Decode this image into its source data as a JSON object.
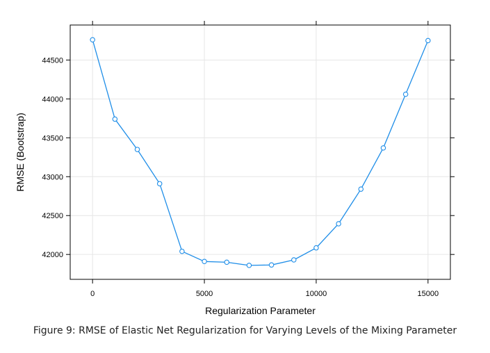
{
  "caption": "Figure 9: RMSE of Elastic Net Regularization for Varying Levels of the Mixing Parameter",
  "chart_data": {
    "type": "line",
    "title": "",
    "xlabel": "Regularization Parameter",
    "ylabel": "RMSE (Bootstrap)",
    "xlim": [
      -1000,
      16000
    ],
    "ylim": [
      41680,
      44950
    ],
    "x_ticks": [
      0,
      5000,
      10000,
      15000
    ],
    "y_ticks": [
      42000,
      42500,
      43000,
      43500,
      44000,
      44500
    ],
    "grid": true,
    "series_color": "#1f8ee8",
    "x": [
      0,
      1000,
      2000,
      3000,
      4000,
      5000,
      6000,
      7000,
      8000,
      9000,
      10000,
      11000,
      12000,
      13000,
      14000,
      15000
    ],
    "y": [
      44760,
      43740,
      43350,
      42910,
      42040,
      41910,
      41900,
      41860,
      41865,
      41930,
      42085,
      42395,
      42840,
      43370,
      44060,
      44750
    ]
  }
}
